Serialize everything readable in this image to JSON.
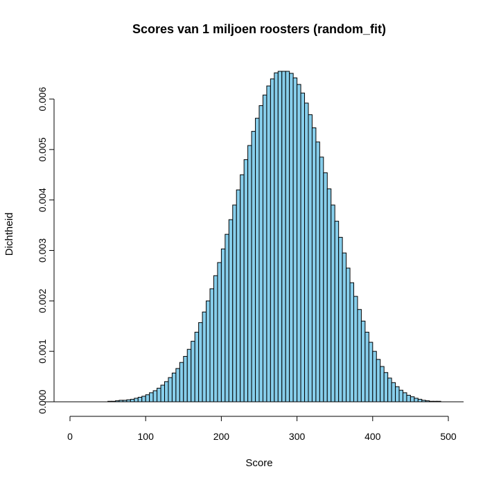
{
  "chart_data": {
    "type": "bar",
    "title": "Scores van 1 miljoen roosters (random_fit)",
    "xlabel": "Score",
    "ylabel": "Dichtheid",
    "xlim": [
      0,
      500
    ],
    "ylim": [
      0,
      0.006
    ],
    "x_ticks": [
      "0",
      "100",
      "200",
      "300",
      "400",
      "500"
    ],
    "y_ticks": [
      "0.000",
      "0.001",
      "0.002",
      "0.003",
      "0.004",
      "0.005",
      "0.006"
    ],
    "bin_width": 5,
    "bin_start": 50,
    "values": [
      1e-05,
      1e-05,
      2e-05,
      3e-05,
      3e-05,
      4e-05,
      5e-05,
      7e-05,
      9e-05,
      0.00011,
      0.00014,
      0.00018,
      0.00022,
      0.00027,
      0.00033,
      0.0004,
      0.00048,
      0.00057,
      0.00066,
      0.00078,
      0.0009,
      0.00104,
      0.0012,
      0.00138,
      0.00157,
      0.00178,
      0.002,
      0.00224,
      0.0025,
      0.00276,
      0.00303,
      0.00332,
      0.00361,
      0.0039,
      0.0042,
      0.0045,
      0.0048,
      0.00508,
      0.00536,
      0.00562,
      0.00587,
      0.00608,
      0.00626,
      0.0064,
      0.00652,
      0.00655,
      0.00655,
      0.00655,
      0.00651,
      0.00642,
      0.00629,
      0.00612,
      0.00592,
      0.00569,
      0.00543,
      0.00515,
      0.00485,
      0.00454,
      0.00422,
      0.0039,
      0.00358,
      0.00326,
      0.00295,
      0.00265,
      0.00236,
      0.00209,
      0.00183,
      0.0016,
      0.00138,
      0.00118,
      0.001,
      0.00084,
      0.0007,
      0.00058,
      0.00047,
      0.00038,
      0.0003,
      0.00023,
      0.00018,
      0.00013,
      0.0001,
      7e-05,
      5e-05,
      3e-05,
      2e-05,
      1e-05,
      1e-05,
      1e-05
    ],
    "bar_fill": "#87ceeb",
    "bar_stroke": "#000000",
    "grid": false,
    "legend": "none"
  }
}
